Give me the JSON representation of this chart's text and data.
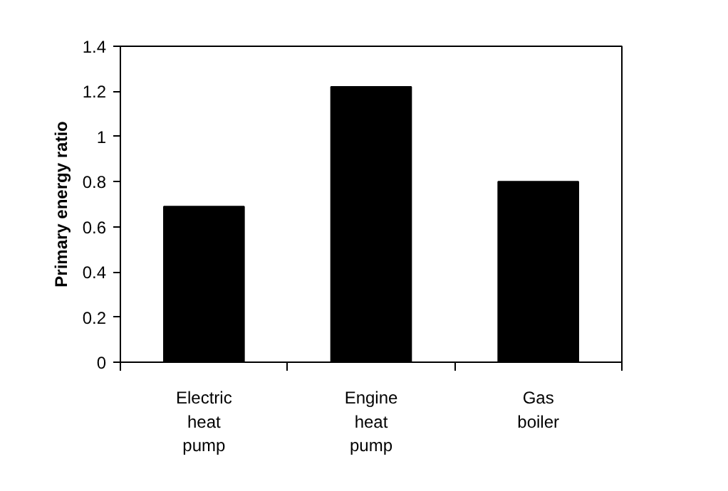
{
  "chart_data": {
    "type": "bar",
    "ylabel": "Primary energy ratio",
    "categories": [
      "Electric\nheat\npump",
      "Engine\nheat\npump",
      "Gas\nboiler"
    ],
    "values": [
      0.69,
      1.22,
      0.8
    ],
    "color": "#000000",
    "ylim": [
      0,
      1.4
    ],
    "yticks": [
      0,
      0.2,
      0.4,
      0.6,
      0.8,
      1,
      1.2,
      1.4
    ],
    "grid": false
  }
}
